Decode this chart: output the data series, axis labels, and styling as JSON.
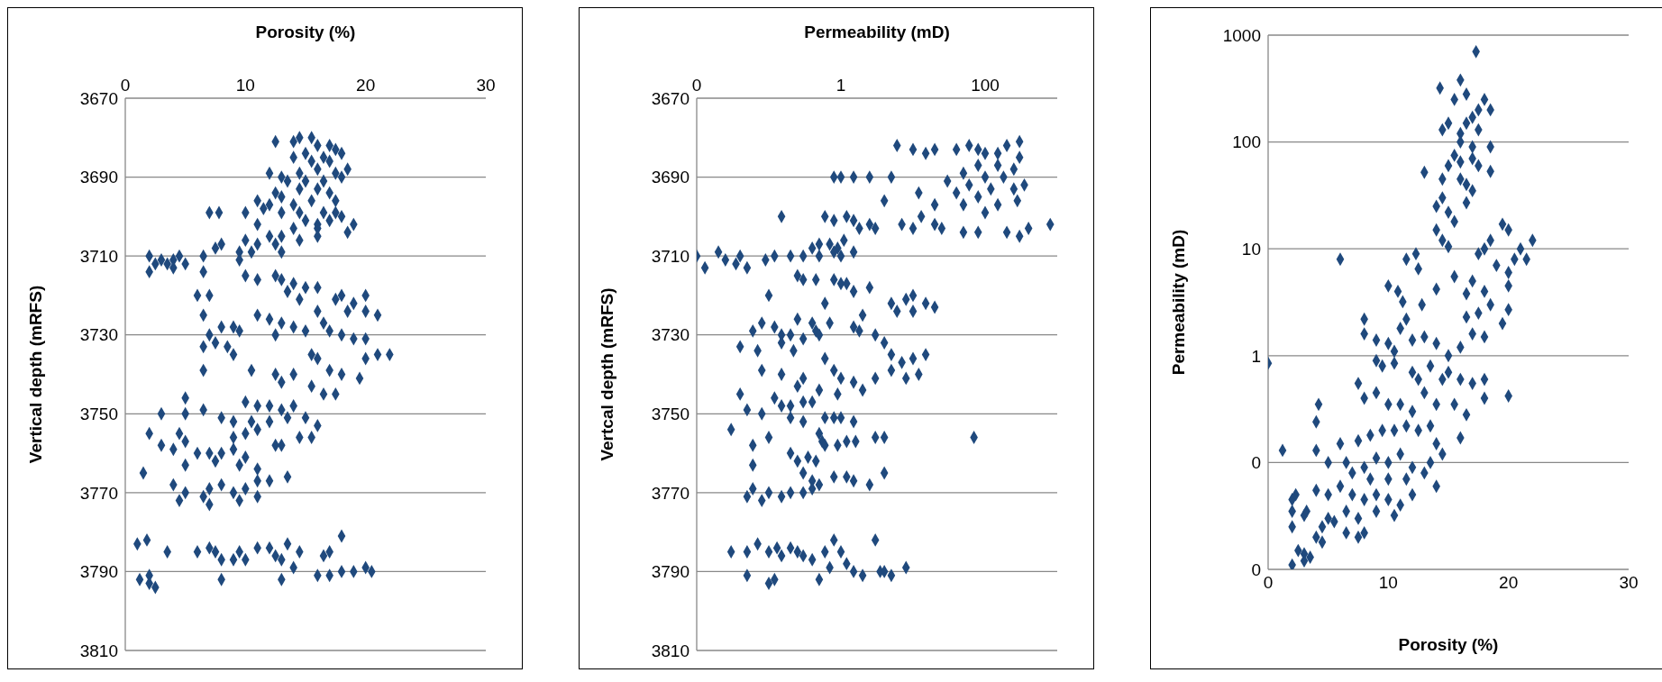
{
  "chart_data": [
    {
      "type": "scatter",
      "xlabel": "Porosity (%)",
      "ylabel": "Vertical depth (mRFS)",
      "xlim": [
        0,
        30
      ],
      "xticks": [
        0,
        10,
        20,
        30
      ],
      "ylim": [
        3810,
        3670
      ],
      "yticks": [
        3670,
        3690,
        3710,
        3730,
        3750,
        3770,
        3790,
        3810
      ],
      "grid": "y",
      "marker": "diamond",
      "series": [
        {
          "color": "#1f497d",
          "x": [
            12.5,
            14,
            14.5,
            15.5,
            16,
            17,
            17.5,
            18,
            15,
            16.5,
            14,
            15.5,
            17,
            18.5,
            16,
            14.5,
            17.5,
            12,
            13,
            13.5,
            15,
            16.5,
            18,
            14.5,
            16,
            17,
            12.5,
            11,
            13,
            14,
            15.5,
            17.5,
            12,
            11.5,
            13,
            14.5,
            16.5,
            17.5,
            7,
            7.8,
            10,
            16,
            17,
            18,
            19,
            18.5,
            16,
            14,
            15,
            11,
            12,
            13,
            14.5,
            16,
            10,
            11,
            12.5,
            13,
            9.5,
            9.5,
            10.5,
            8,
            7.5,
            6.5,
            2,
            2.5,
            3,
            4,
            4.5,
            5,
            2,
            3.5,
            4,
            6.5,
            10,
            11,
            12.5,
            13,
            14,
            15,
            16,
            13.5,
            14.5,
            6,
            7,
            18,
            17.5,
            19,
            20,
            18.5,
            20,
            21,
            16,
            6.5,
            11,
            12,
            13,
            14,
            15,
            16.5,
            17,
            12.5,
            8,
            9,
            9.5,
            7,
            18,
            19,
            20,
            6.5,
            7.5,
            8.5,
            9,
            21,
            22,
            20,
            15.5,
            16,
            6.5,
            10.5,
            12.5,
            14,
            17,
            18,
            19.5,
            13,
            15.5,
            16.5,
            17.5,
            5,
            6.5,
            3,
            5,
            10,
            11,
            12,
            13,
            14,
            8,
            9,
            10.5,
            12,
            13.5,
            15,
            16,
            2,
            4.5,
            10,
            11,
            9,
            15.5,
            14.5,
            3,
            4,
            5,
            12.5,
            13,
            6,
            7,
            8,
            9,
            10,
            5,
            7.5,
            9.5,
            11,
            1.5,
            12,
            13.5,
            4,
            5,
            7,
            8,
            9,
            10,
            11,
            4.5,
            6.5,
            7,
            9.5,
            11,
            1,
            1.8,
            3.5,
            6,
            7,
            7.5,
            8,
            9,
            9.5,
            10,
            11,
            12,
            12.5,
            13.5,
            14.5,
            13,
            14,
            18,
            16.5,
            17,
            16,
            17,
            18,
            19,
            20,
            20.5,
            8,
            13,
            1.2,
            2,
            2.5,
            2
          ],
          "values": [
            3681,
            3681,
            3680,
            3680,
            3682,
            3682,
            3683,
            3684,
            3684,
            3685,
            3685,
            3686,
            3686,
            3688,
            3688,
            3689,
            3689,
            3689,
            3690,
            3691,
            3691,
            3691,
            3690,
            3693,
            3693,
            3694,
            3694,
            3696,
            3695,
            3697,
            3696,
            3696,
            3697,
            3698,
            3699,
            3699,
            3699,
            3699,
            3699,
            3699,
            3699,
            3702,
            3701,
            3700,
            3702,
            3704,
            3703,
            3703,
            3701,
            3702,
            3705,
            3705,
            3706,
            3705,
            3706,
            3707,
            3707,
            3709,
            3709,
            3711,
            3709,
            3707,
            3708,
            3710,
            3710,
            3712,
            3711,
            3711,
            3710,
            3712,
            3714,
            3712,
            3713,
            3714,
            3715,
            3716,
            3715,
            3716,
            3717,
            3718,
            3718,
            3719,
            3721,
            3720,
            3720,
            3720,
            3721,
            3722,
            3720,
            3724,
            3724,
            3725,
            3724,
            3725,
            3725,
            3726,
            3727,
            3728,
            3729,
            3727,
            3729,
            3730,
            3728,
            3728,
            3729,
            3730,
            3730,
            3731,
            3731,
            3733,
            3732,
            3733,
            3735,
            3735,
            3735,
            3736,
            3735,
            3736,
            3739,
            3739,
            3740,
            3740,
            3739,
            3740,
            3741,
            3742,
            3743,
            3745,
            3745,
            3746,
            3749,
            3750,
            3750,
            3747,
            3748,
            3748,
            3749,
            3748,
            3751,
            3752,
            3752,
            3752,
            3751,
            3751,
            3753,
            3755,
            3755,
            3755,
            3754,
            3756,
            3756,
            3756,
            3758,
            3759,
            3757,
            3758,
            3758,
            3760,
            3760,
            3760,
            3759,
            3761,
            3763,
            3762,
            3763,
            3764,
            3765,
            3767,
            3766,
            3768,
            3770,
            3769,
            3768,
            3770,
            3769,
            3767,
            3772,
            3771,
            3773,
            3772,
            3771,
            3783,
            3782,
            3785,
            3785,
            3784,
            3785,
            3787,
            3787,
            3785,
            3787,
            3784,
            3784,
            3786,
            3783,
            3785,
            3787,
            3789,
            3781,
            3786,
            3785,
            3791,
            3791,
            3790,
            3790,
            3789,
            3790,
            3792,
            3792,
            3792,
            3793,
            3794,
            3791
          ]
        }
      ]
    },
    {
      "type": "scatter",
      "xlabel": "Permeability (mD)",
      "ylabel": "Vertcal  depth (mRFS)",
      "log": "x",
      "xlim": [
        0.01,
        1000
      ],
      "xticks": [
        {
          "value": 0.01,
          "label": "0"
        },
        1,
        100
      ],
      "ylim": [
        3810,
        3670
      ],
      "yticks": [
        3670,
        3690,
        3710,
        3730,
        3750,
        3770,
        3790,
        3810
      ],
      "grid": "y",
      "marker": "diamond",
      "series": [
        {
          "color": "#1f497d",
          "x": [
            6,
            10,
            15,
            20,
            40,
            60,
            80,
            100,
            150,
            200,
            300,
            300,
            250,
            150,
            80,
            50,
            30,
            100,
            180,
            60,
            120,
            250,
            350,
            40,
            80,
            150,
            280,
            12,
            20,
            50,
            100,
            13,
            4,
            5,
            0.8,
            1,
            1.5,
            2.5,
            7,
            10,
            20,
            25,
            50,
            80,
            200,
            300,
            400,
            800,
            3,
            2.5,
            0.15,
            0.6,
            0.8,
            1.2,
            1.5,
            1.8,
            0.3,
            0.4,
            0.5,
            0.7,
            0.9,
            1.1,
            1.5,
            0.5,
            0.8,
            1,
            0.01,
            0.013,
            0.02,
            0.025,
            0.035,
            0.04,
            0.05,
            0.09,
            0.12,
            0.2,
            0.25,
            0.3,
            0.45,
            0.8,
            1,
            1.2,
            1.5,
            2.5,
            0.1,
            0.6,
            5,
            8,
            10,
            15,
            6,
            10,
            20,
            2,
            1.5,
            0.7,
            0.4,
            0.25,
            0.08,
            0.06,
            0.12,
            0.15,
            0.2,
            0.3,
            0.45,
            0.5,
            0.04,
            0.07,
            0.15,
            0.22,
            1.8,
            3,
            4,
            5,
            7,
            10,
            15,
            0.08,
            0.15,
            0.3,
            0.6,
            0.8,
            1,
            1.5,
            2,
            3,
            5,
            8,
            12,
            0.25,
            0.5,
            0.9,
            0.04,
            0.05,
            0.08,
            0.12,
            0.15,
            0.2,
            0.3,
            0.4,
            0.2,
            0.3,
            0.6,
            0.8,
            1,
            1.5,
            0.03,
            0.5,
            0.55,
            0.9,
            1.2,
            1.6,
            3,
            4,
            70,
            0.06,
            0.1,
            0.2,
            0.25,
            0.35,
            0.45,
            0.6,
            0.06,
            0.3,
            0.4,
            0.5,
            0.8,
            1.2,
            1.5,
            2.5,
            4,
            0.05,
            0.06,
            0.08,
            0.1,
            0.15,
            0.2,
            0.3,
            0.4,
            0.03,
            0.05,
            0.07,
            0.1,
            0.13,
            0.15,
            0.2,
            0.25,
            0.3,
            0.4,
            0.6,
            0.8,
            1,
            1.2,
            1.5,
            0.7,
            3,
            2,
            3.5,
            4,
            5,
            8,
            0.05,
            0.1,
            0.12,
            0.5
          ],
          "values": [
            3682,
            3683,
            3684,
            3683,
            3683,
            3682,
            3683,
            3684,
            3684,
            3682,
            3681,
            3685,
            3688,
            3687,
            3687,
            3689,
            3691,
            3690,
            3690,
            3692,
            3693,
            3693,
            3692,
            3694,
            3695,
            3697,
            3696,
            3694,
            3697,
            3697,
            3699,
            3700,
            3696,
            3690,
            3690,
            3690,
            3690,
            3690,
            3702,
            3703,
            3702,
            3703,
            3704,
            3704,
            3704,
            3705,
            3703,
            3702,
            3703,
            3702,
            3700,
            3700,
            3701,
            3700,
            3701,
            3703,
            3710,
            3708,
            3707,
            3707,
            3708,
            3706,
            3709,
            3710,
            3709,
            3710,
            3710,
            3713,
            3709,
            3711,
            3712,
            3710,
            3713,
            3711,
            3710,
            3710,
            3715,
            3716,
            3716,
            3716,
            3717,
            3717,
            3719,
            3718,
            3720,
            3722,
            3722,
            3721,
            3720,
            3722,
            3724,
            3724,
            3723,
            3725,
            3728,
            3727,
            3727,
            3726,
            3727,
            3729,
            3728,
            3730,
            3730,
            3731,
            3729,
            3730,
            3733,
            3734,
            3732,
            3734,
            3729,
            3730,
            3732,
            3735,
            3737,
            3736,
            3735,
            3739,
            3740,
            3741,
            3736,
            3739,
            3741,
            3742,
            3744,
            3741,
            3739,
            3741,
            3740,
            3743,
            3744,
            3745,
            3745,
            3749,
            3750,
            3746,
            3748,
            3748,
            3747,
            3747,
            3751,
            3752,
            3751,
            3751,
            3751,
            3752,
            3754,
            3755,
            3757,
            3758,
            3757,
            3757,
            3756,
            3756,
            3756,
            3758,
            3756,
            3760,
            3762,
            3761,
            3762,
            3758,
            3763,
            3765,
            3767,
            3768,
            3766,
            3766,
            3767,
            3768,
            3765,
            3771,
            3769,
            3772,
            3770,
            3771,
            3770,
            3770,
            3769,
            3785,
            3785,
            3783,
            3785,
            3784,
            3786,
            3784,
            3785,
            3786,
            3787,
            3785,
            3782,
            3785,
            3788,
            3790,
            3789,
            3782,
            3791,
            3790,
            3790,
            3791,
            3789,
            3791,
            3793,
            3792,
            3792
          ]
        }
      ]
    },
    {
      "type": "scatter",
      "xlabel": "Porosity (%)",
      "ylabel": "Permeability (mD)",
      "log": "y",
      "xlim": [
        0,
        30
      ],
      "xticks": [
        0,
        10,
        20,
        30
      ],
      "ylim": [
        0.01,
        1000
      ],
      "yticks": [
        {
          "value": 0.01,
          "label": "0"
        },
        {
          "value": 0.1,
          "label": "0"
        },
        1,
        10,
        100,
        1000
      ],
      "grid": "y",
      "marker": "diamond",
      "series": [
        {
          "color": "#1f497d",
          "x": [
            17.3,
            14.3,
            16,
            15.5,
            16.5,
            18,
            18.5,
            17.5,
            16.5,
            17,
            14.5,
            15,
            16,
            17.5,
            16,
            17,
            18.5,
            15.5,
            16,
            17,
            15,
            17.5,
            14.5,
            16,
            16.5,
            13,
            18.5,
            17,
            16.5,
            14,
            14.5,
            15,
            15.5,
            14,
            14.5,
            15,
            19.5,
            20,
            21,
            22,
            21.5,
            20.5,
            20,
            19,
            18,
            18.5,
            17.5,
            17,
            18,
            18.5,
            20,
            20,
            19.5,
            6,
            12.3,
            12.5,
            11.5,
            14,
            15.5,
            16.5,
            10,
            10.8,
            11.2,
            12.8,
            8,
            8,
            9,
            10,
            10.5,
            11,
            11.5,
            12,
            13,
            14,
            15,
            16,
            17,
            18,
            17.5,
            16.5,
            9,
            9.5,
            10.5,
            12,
            12.5,
            13.5,
            14.5,
            15,
            16,
            17,
            18,
            0,
            7.5,
            8,
            9,
            10,
            11,
            12,
            13,
            14,
            15.5,
            16.5,
            18,
            20,
            4.2,
            4,
            16,
            1.2,
            4,
            6,
            7.5,
            8.5,
            9.5,
            10.5,
            11.5,
            12.5,
            13.5,
            14,
            14.5,
            5,
            6.5,
            8,
            9,
            10,
            11,
            12,
            13.5,
            7,
            8.5,
            10,
            11.5,
            13,
            14,
            4,
            5,
            6,
            7,
            8,
            9,
            10,
            11,
            12,
            2,
            2.3,
            2,
            3,
            3.2,
            6.5,
            7.5,
            9,
            10.5,
            2,
            4.5,
            5,
            5.5,
            6.5,
            7.5,
            8,
            4,
            4.5,
            2.5,
            3,
            3.5,
            2,
            3
          ],
          "values": [
            700,
            320,
            380,
            250,
            280,
            250,
            200,
            200,
            150,
            170,
            130,
            150,
            120,
            130,
            100,
            90,
            90,
            75,
            65,
            70,
            60,
            60,
            45,
            45,
            40,
            52,
            53,
            35,
            27,
            25,
            30,
            22,
            18,
            15,
            12,
            10.5,
            17,
            15,
            10,
            12,
            8,
            8,
            6,
            7,
            10,
            12,
            9,
            5,
            4,
            3,
            4.5,
            2.7,
            2,
            8,
            9,
            6.5,
            8,
            4.2,
            5.5,
            3.8,
            4.5,
            4,
            3.2,
            3,
            2.2,
            1.6,
            1.4,
            1.3,
            1.1,
            1.8,
            2.2,
            1.4,
            1.5,
            1.3,
            1,
            1.2,
            1.6,
            1.5,
            2.5,
            2.3,
            0.9,
            0.8,
            0.85,
            0.7,
            0.6,
            0.8,
            0.6,
            0.7,
            0.6,
            0.55,
            0.6,
            0.85,
            0.55,
            0.4,
            0.45,
            0.35,
            0.35,
            0.3,
            0.45,
            0.35,
            0.35,
            0.28,
            0.4,
            0.42,
            0.35,
            0.24,
            0.17,
            0.13,
            0.13,
            0.15,
            0.16,
            0.18,
            0.2,
            0.2,
            0.22,
            0.2,
            0.22,
            0.15,
            0.12,
            0.1,
            0.1,
            0.09,
            0.11,
            0.1,
            0.12,
            0.09,
            0.1,
            0.08,
            0.07,
            0.07,
            0.07,
            0.08,
            0.06,
            0.055,
            0.05,
            0.06,
            0.05,
            0.045,
            0.05,
            0.045,
            0.04,
            0.05,
            0.045,
            0.05,
            0.035,
            0.032,
            0.035,
            0.035,
            0.03,
            0.035,
            0.032,
            0.025,
            0.025,
            0.03,
            0.028,
            0.022,
            0.02,
            0.022,
            0.02,
            0.018,
            0.015,
            0.014,
            0.013,
            0.011,
            0.012
          ]
        }
      ]
    }
  ]
}
